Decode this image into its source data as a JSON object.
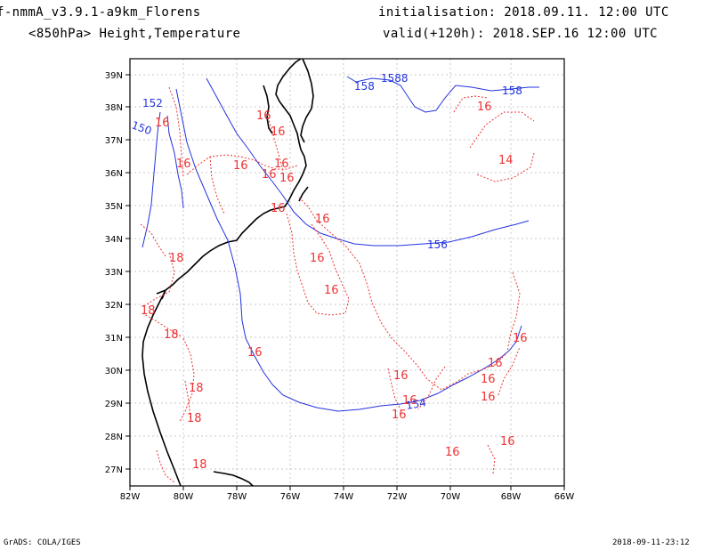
{
  "header": {
    "model": "f-nmmA_v3.9.1-a9km_Florens",
    "field": "<850hPa> Height,Temperature",
    "init": "initialisation: 2018.09.11. 12:00 UTC",
    "valid": "valid(+120h): 2018.SEP.16 12:00 UTC"
  },
  "axes": {
    "lon_labels": [
      "82W",
      "80W",
      "78W",
      "76W",
      "74W",
      "72W",
      "70W",
      "68W",
      "66W"
    ],
    "lat_labels": [
      "27N",
      "28N",
      "29N",
      "30N",
      "31N",
      "32N",
      "33N",
      "34N",
      "35N",
      "36N",
      "37N",
      "38N",
      "39N"
    ]
  },
  "height_labels": [
    "152",
    "150",
    "158",
    "1588",
    "158",
    "156",
    "154"
  ],
  "temp_labels": [
    "16",
    "16",
    "16",
    "16",
    "16",
    "16",
    "16",
    "16",
    "16",
    "16",
    "16",
    "14",
    "18",
    "18",
    "18",
    "18",
    "18",
    "18",
    "16",
    "16",
    "16",
    "16",
    "16",
    "16",
    "16",
    "16",
    "16",
    "16",
    "16",
    "16"
  ],
  "colors": {
    "height_contour": "#2233dd",
    "temp_contour": "#ee3333",
    "coastline": "#000000",
    "grid": "#c8c8c8"
  },
  "footer": {
    "left": "GrADS: COLA/IGES",
    "right": "2018-09-11-23:12"
  }
}
